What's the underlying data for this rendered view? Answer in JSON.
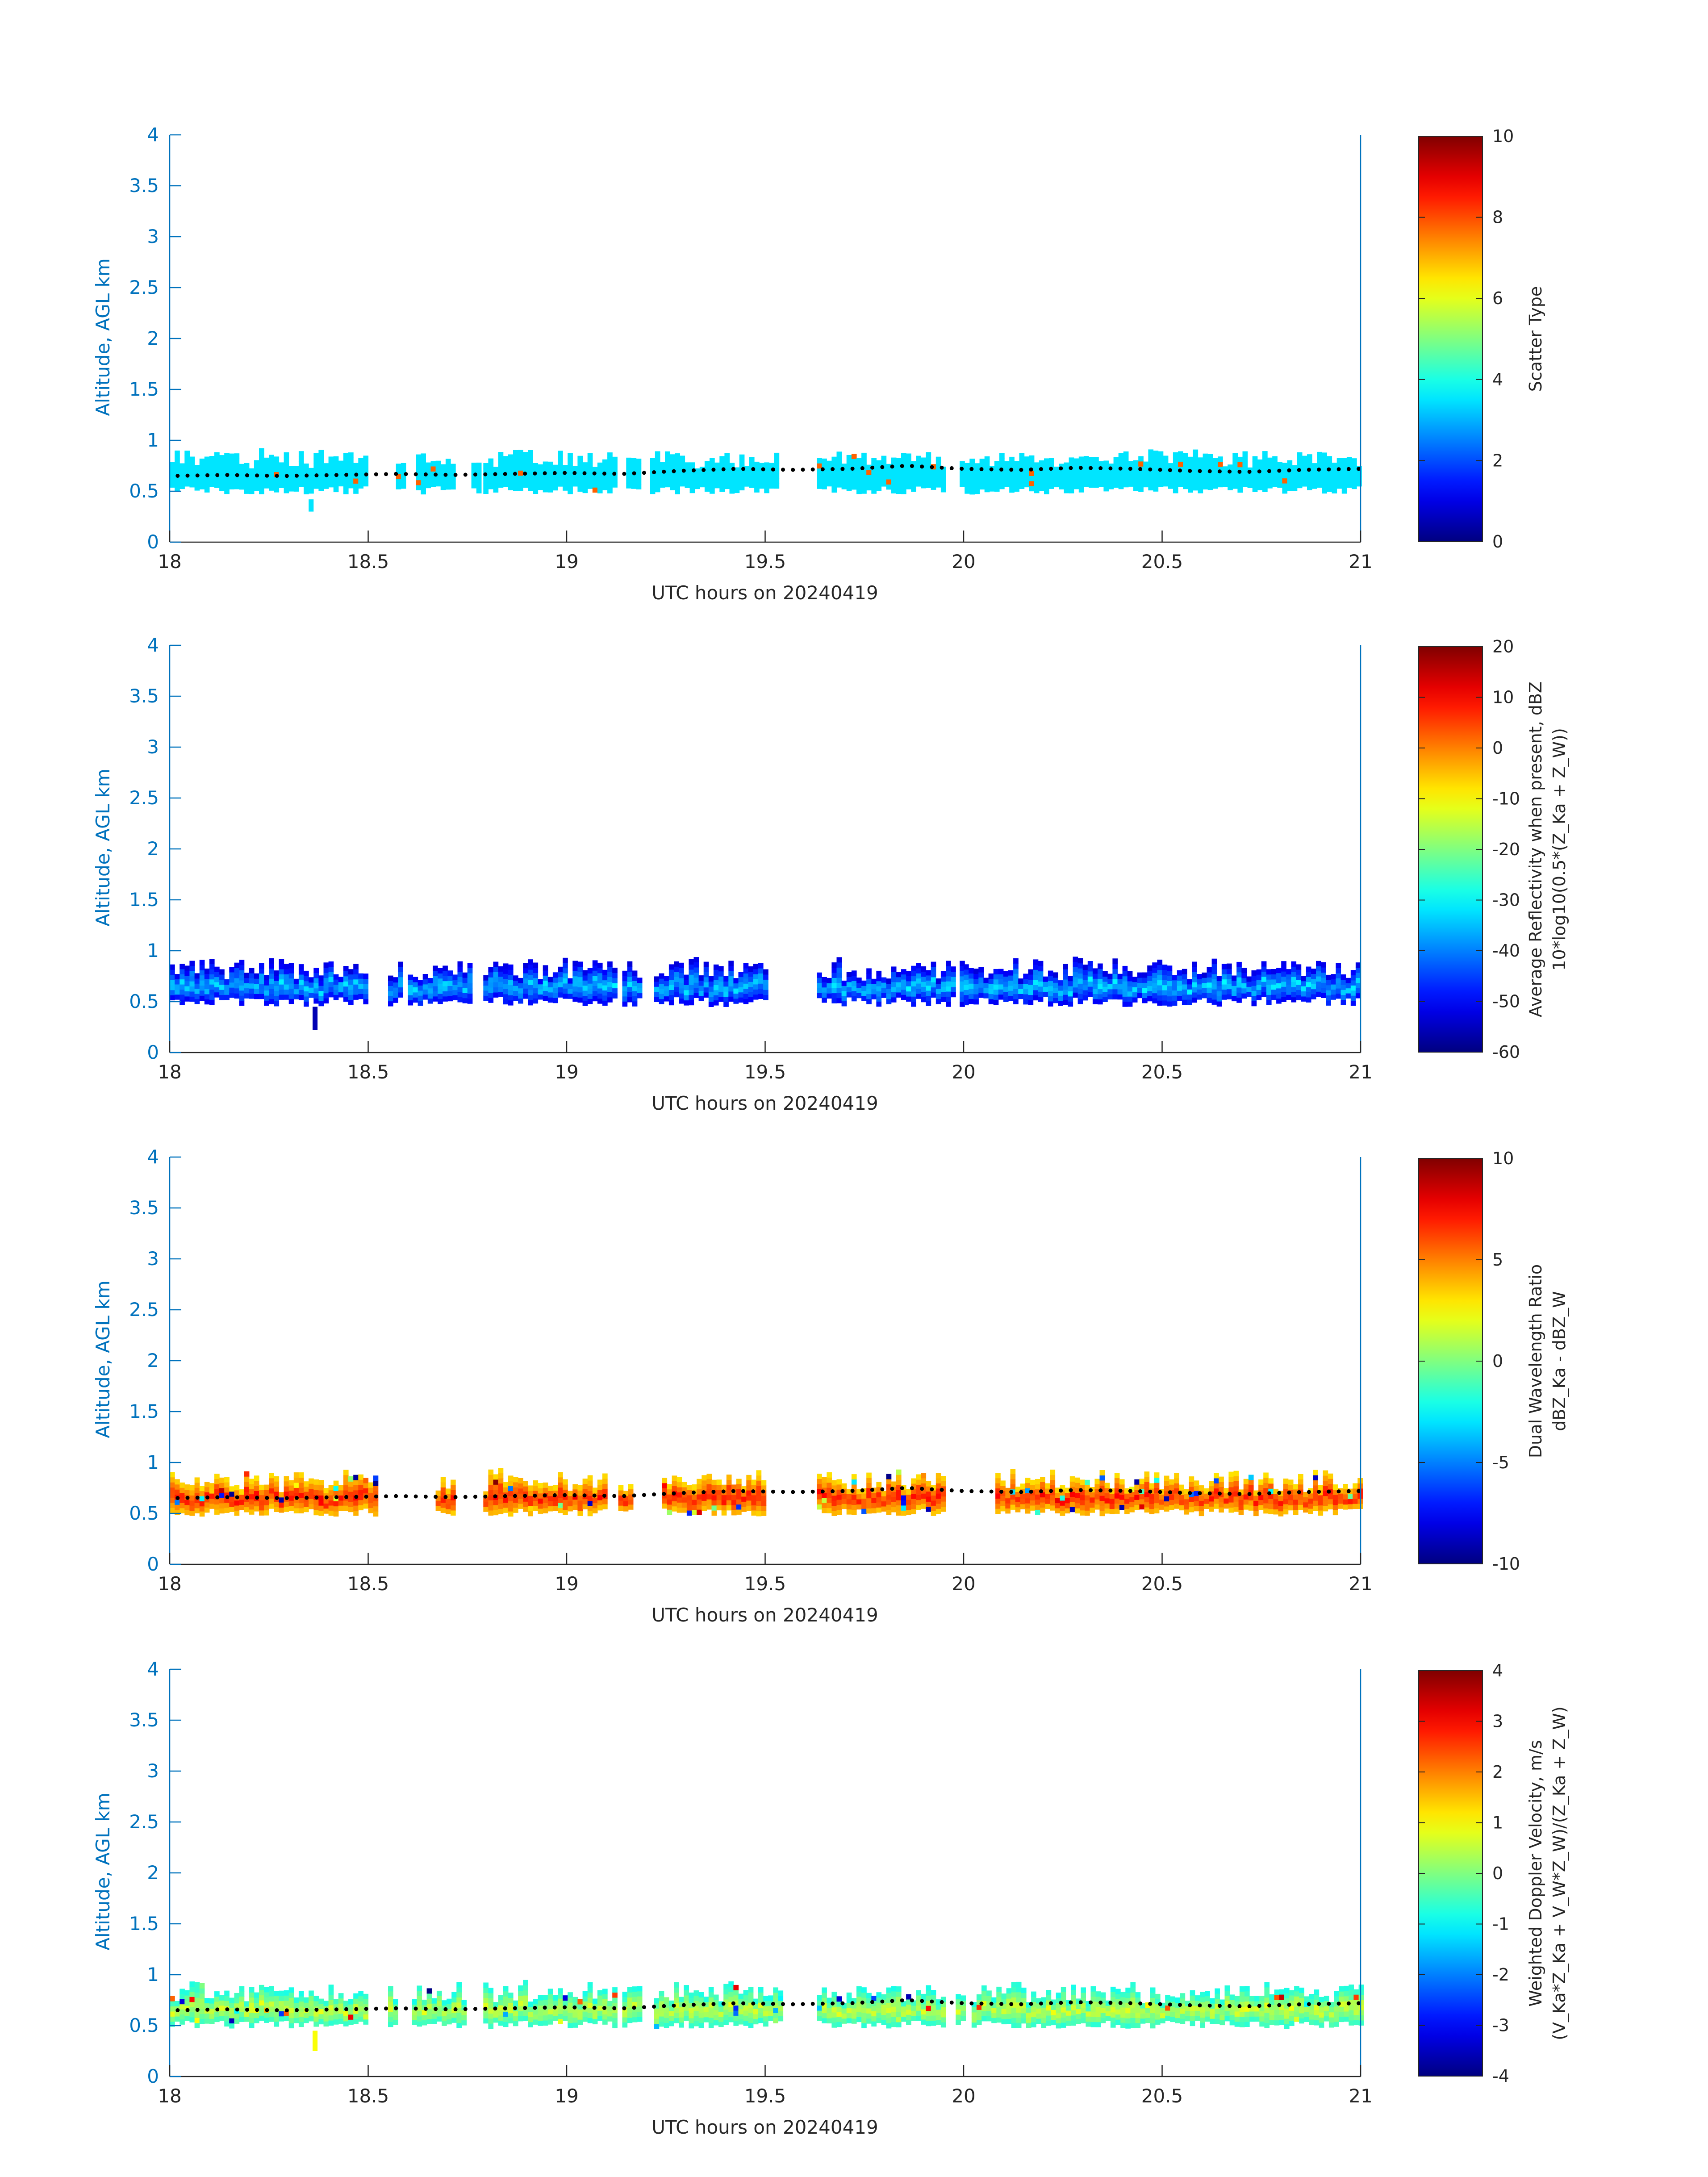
{
  "figure": {
    "background": "#ffffff",
    "axis_color": "#0072BD",
    "text_color": "#262626"
  },
  "chart_data": [
    {
      "type": "heatmap",
      "name": "scatter-type",
      "xlabel": "UTC hours on 20240419",
      "ylabel": "Altitude, AGL km",
      "xlim": [
        18,
        21
      ],
      "ylim": [
        0,
        4
      ],
      "xticks": [
        "18",
        "18.5",
        "19",
        "19.5",
        "20",
        "20.5",
        "21"
      ],
      "yticks": [
        "0",
        "0.5",
        "1",
        "1.5",
        "2",
        "2.5",
        "3",
        "3.5",
        "4"
      ],
      "colorbar": {
        "label": "Scatter Type",
        "sublabel": "",
        "clim": [
          0,
          10
        ],
        "ticks": [
          "0",
          "2",
          "4",
          "6",
          "8",
          "10"
        ],
        "colormap": "jet"
      },
      "value_range": [
        3.5,
        3.5
      ],
      "fill_value": 3.5,
      "outlier_value": 7.8,
      "speckle": 0.0,
      "top_jitter": 0.08,
      "bottom_jitter": 0.08,
      "segments": [
        [
          18.0,
          18.5
        ],
        [
          18.57,
          18.59
        ],
        [
          18.62,
          18.72
        ],
        [
          18.76,
          18.78
        ],
        [
          18.79,
          19.12
        ],
        [
          19.15,
          19.18
        ],
        [
          19.21,
          19.53
        ],
        [
          19.63,
          19.95
        ],
        [
          19.99,
          21.0
        ]
      ],
      "extra_stray": [
        [
          18.35,
          0.3,
          0.42
        ]
      ],
      "melting_layer_km": [
        0.65,
        0.66,
        0.65,
        0.66,
        0.67,
        0.66,
        0.67,
        0.68,
        0.67,
        0.7,
        0.72,
        0.71,
        0.72,
        0.75,
        0.72,
        0.71,
        0.73,
        0.72,
        0.7,
        0.69,
        0.71,
        0.72
      ]
    },
    {
      "type": "heatmap",
      "name": "reflectivity",
      "xlabel": "UTC hours on 20240419",
      "ylabel": "Altitude, AGL km",
      "xlim": [
        18,
        21
      ],
      "ylim": [
        0,
        4
      ],
      "xticks": [
        "18",
        "18.5",
        "19",
        "19.5",
        "20",
        "20.5",
        "21"
      ],
      "yticks": [
        "0",
        "0.5",
        "1",
        "1.5",
        "2",
        "2.5",
        "3",
        "3.5",
        "4"
      ],
      "colorbar": {
        "label": "Average Reflectivity when present, dBZ",
        "sublabel": "10*log10(0.5*(Z_Ka + Z_W))",
        "clim": [
          -60,
          20
        ],
        "ticks": [
          "-60",
          "-50",
          "-40",
          "-30",
          "-20",
          "-10",
          "0",
          "10",
          "20"
        ],
        "colormap": "jet"
      },
      "value_range": [
        -58,
        -34
      ],
      "fill_value": null,
      "outlier_value": null,
      "speckle": 0.0,
      "top_jitter": 0.1,
      "bottom_jitter": 0.1,
      "segments": [
        [
          18.0,
          18.5
        ],
        [
          18.55,
          18.58
        ],
        [
          18.6,
          18.76
        ],
        [
          18.79,
          19.12
        ],
        [
          19.14,
          19.18
        ],
        [
          19.22,
          19.5
        ],
        [
          19.63,
          19.98
        ],
        [
          19.99,
          20.0
        ],
        [
          20.0,
          21.0
        ]
      ],
      "extra_stray": [
        [
          18.36,
          0.22,
          0.45
        ]
      ],
      "melting_layer_km": null
    },
    {
      "type": "heatmap",
      "name": "dual-wavelength-ratio",
      "xlabel": "UTC hours on 20240419",
      "ylabel": "Altitude, AGL km",
      "xlim": [
        18,
        21
      ],
      "ylim": [
        0,
        4
      ],
      "xticks": [
        "18",
        "18.5",
        "19",
        "19.5",
        "20",
        "20.5",
        "21"
      ],
      "yticks": [
        "0",
        "0.5",
        "1",
        "1.5",
        "2",
        "2.5",
        "3",
        "3.5",
        "4"
      ],
      "colorbar": {
        "label": "Dual Wavelength Ratio",
        "sublabel": "dBZ_Ka - dBZ_W",
        "clim": [
          -10,
          10
        ],
        "ticks": [
          "-10",
          "-5",
          "0",
          "5",
          "10"
        ],
        "colormap": "jet"
      },
      "value_range": [
        2,
        7
      ],
      "fill_value": null,
      "outlier_value": null,
      "speckle": 0.06,
      "top_jitter": 0.1,
      "bottom_jitter": 0.08,
      "segments": [
        [
          18.0,
          18.52
        ],
        [
          18.67,
          18.71
        ],
        [
          18.79,
          19.1
        ],
        [
          19.13,
          19.16
        ],
        [
          19.24,
          19.5
        ],
        [
          19.63,
          19.95
        ],
        [
          20.08,
          21.0
        ]
      ],
      "extra_stray": [],
      "melting_layer_km": [
        0.65,
        0.66,
        0.65,
        0.66,
        0.67,
        0.66,
        0.67,
        0.68,
        0.67,
        0.7,
        0.72,
        0.71,
        0.72,
        0.75,
        0.72,
        0.71,
        0.73,
        0.72,
        0.7,
        0.69,
        0.71,
        0.72
      ]
    },
    {
      "type": "heatmap",
      "name": "weighted-doppler-velocity",
      "xlabel": "UTC hours on 20240419",
      "ylabel": "Altitude, AGL km",
      "xlim": [
        18,
        21
      ],
      "ylim": [
        0,
        4
      ],
      "xticks": [
        "18",
        "18.5",
        "19",
        "19.5",
        "20",
        "20.5",
        "21"
      ],
      "yticks": [
        "0",
        "0.5",
        "1",
        "1.5",
        "2",
        "2.5",
        "3",
        "3.5",
        "4"
      ],
      "colorbar": {
        "label": "Weighted Doppler Velocity, m/s",
        "sublabel": "(V_Ka*Z_Ka + V_W*Z_W)/(Z_Ka + Z_W)",
        "clim": [
          -4,
          4
        ],
        "ticks": [
          "-4",
          "-3",
          "-2",
          "-1",
          "0",
          "1",
          "2",
          "3",
          "4"
        ],
        "colormap": "jet"
      },
      "value_range": [
        -1.2,
        0.6
      ],
      "fill_value": null,
      "outlier_value": null,
      "speckle": 0.04,
      "top_jitter": 0.1,
      "bottom_jitter": 0.08,
      "segments": [
        [
          18.0,
          18.5
        ],
        [
          18.55,
          18.57
        ],
        [
          18.61,
          18.74
        ],
        [
          18.79,
          19.12
        ],
        [
          19.14,
          19.18
        ],
        [
          19.22,
          19.54
        ],
        [
          19.63,
          19.95
        ],
        [
          19.98,
          20.0
        ],
        [
          20.02,
          21.0
        ]
      ],
      "extra_stray": [
        [
          18.36,
          0.25,
          0.45
        ]
      ],
      "melting_layer_km": [
        0.65,
        0.66,
        0.65,
        0.66,
        0.67,
        0.66,
        0.67,
        0.68,
        0.67,
        0.7,
        0.72,
        0.71,
        0.72,
        0.75,
        0.72,
        0.71,
        0.73,
        0.72,
        0.7,
        0.69,
        0.71,
        0.72
      ]
    }
  ]
}
